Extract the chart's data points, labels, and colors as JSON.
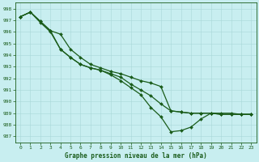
{
  "title": "Graphe pression niveau de la mer (hPa)",
  "bg_color": "#c8eef0",
  "grid_color": "#a8d8d8",
  "line_color": "#1a5c1a",
  "marker_color": "#1a5c1a",
  "ylim": [
    986.5,
    998.5
  ],
  "xlim": [
    -0.5,
    23.5
  ],
  "yticks": [
    987,
    988,
    989,
    990,
    991,
    992,
    993,
    994,
    995,
    996,
    997,
    998
  ],
  "xticks": [
    0,
    1,
    2,
    3,
    4,
    5,
    6,
    7,
    8,
    9,
    10,
    11,
    12,
    13,
    14,
    15,
    16,
    17,
    18,
    19,
    20,
    21,
    22,
    23
  ],
  "series": [
    [
      997.3,
      997.7,
      996.9,
      996.1,
      995.8,
      994.5,
      993.8,
      993.2,
      992.9,
      992.6,
      992.4,
      992.1,
      991.8,
      991.6,
      991.3,
      989.2,
      989.1,
      989.0,
      989.0,
      989.0,
      988.9,
      988.9,
      988.9,
      988.9
    ],
    [
      997.3,
      997.7,
      996.9,
      996.1,
      994.5,
      993.8,
      993.2,
      992.9,
      992.7,
      992.4,
      992.1,
      991.5,
      991.0,
      990.5,
      989.8,
      989.2,
      989.1,
      989.0,
      989.0,
      989.0,
      988.9,
      988.9,
      988.9,
      988.9
    ],
    [
      997.3,
      997.7,
      996.8,
      996.0,
      994.5,
      993.8,
      993.2,
      992.9,
      992.7,
      992.3,
      991.8,
      991.2,
      990.6,
      989.5,
      988.7,
      987.4,
      987.5,
      987.8,
      988.5,
      989.0,
      989.0,
      989.0,
      988.9,
      988.9
    ]
  ]
}
